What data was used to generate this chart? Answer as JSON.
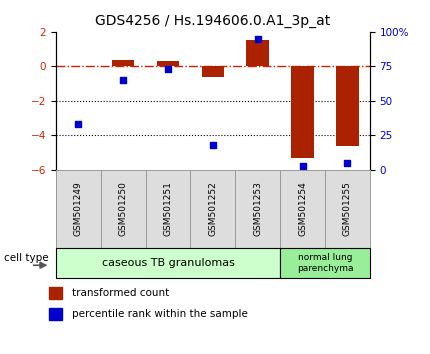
{
  "title": "GDS4256 / Hs.194606.0.A1_3p_at",
  "samples": [
    "GSM501249",
    "GSM501250",
    "GSM501251",
    "GSM501252",
    "GSM501253",
    "GSM501254",
    "GSM501255"
  ],
  "transformed_count": [
    0.0,
    0.35,
    0.3,
    -0.6,
    1.5,
    -5.3,
    -4.6
  ],
  "percentile_rank": [
    33,
    65,
    73,
    18,
    95,
    3,
    5
  ],
  "ylim_left": [
    -6,
    2
  ],
  "ylim_right": [
    0,
    100
  ],
  "left_ticks": [
    -6,
    -4,
    -2,
    0,
    2
  ],
  "right_ticks": [
    0,
    25,
    50,
    75,
    100
  ],
  "bar_color": "#AA2200",
  "dot_color": "#0000CC",
  "hline_color": "#CC2200",
  "dotline_color": "#000000",
  "group1_label": "caseous TB granulomas",
  "group2_label": "normal lung\nparenchyma",
  "group1_color": "#CCFFCC",
  "group2_color": "#99EE99",
  "sample_box_color": "#DDDDDD",
  "sample_box_edge": "#999999",
  "cell_type_label": "cell type",
  "legend_bar_label": "transformed count",
  "legend_dot_label": "percentile rank within the sample",
  "bar_width": 0.5,
  "title_fontsize": 10,
  "tick_fontsize": 7.5,
  "sample_fontsize": 6.5,
  "group_fontsize": 8,
  "legend_fontsize": 7.5
}
